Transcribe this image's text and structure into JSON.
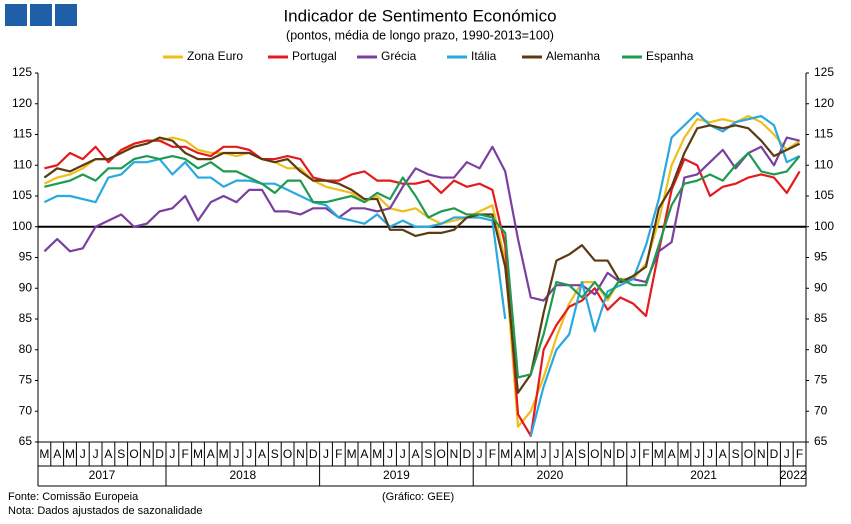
{
  "chart_data": {
    "type": "line",
    "title": "Indicador de Sentimento Económico",
    "subtitle": "(pontos, média de longo prazo, 1990-2013=100)",
    "source": "Fonte: Comissão Europeia",
    "note": "Nota: Dados ajustados de sazonalidade",
    "credit": "(Gráfico: GEE)",
    "categories": [
      "M",
      "A",
      "M",
      "J",
      "J",
      "A",
      "S",
      "O",
      "N",
      "D",
      "J",
      "F",
      "M",
      "A",
      "M",
      "J",
      "J",
      "A",
      "S",
      "O",
      "N",
      "D",
      "J",
      "F",
      "M",
      "A",
      "M",
      "J",
      "J",
      "A",
      "S",
      "O",
      "N",
      "D",
      "J",
      "F",
      "M",
      "A",
      "M",
      "J",
      "J",
      "A",
      "S",
      "O",
      "N",
      "D",
      "J",
      "F",
      "M",
      "A",
      "M",
      "J",
      "J",
      "A",
      "S",
      "O",
      "N",
      "D",
      "J",
      "F"
    ],
    "years": [
      "2017",
      "2018",
      "2019",
      "2020",
      "2021",
      "2022"
    ],
    "ylim": [
      65,
      125
    ],
    "yticks": [
      65,
      70,
      75,
      80,
      85,
      90,
      95,
      100,
      105,
      110,
      115,
      120,
      125
    ],
    "reference_line": 100,
    "series": [
      {
        "name": "Zona Euro",
        "color": "#f0be1a",
        "values": [
          107,
          108,
          108.5,
          109.5,
          111,
          111,
          112,
          113.5,
          114,
          114,
          114.5,
          114,
          112.5,
          112,
          112,
          111.5,
          112,
          111,
          110.5,
          109.5,
          109.5,
          107.5,
          106.5,
          106,
          105.5,
          104,
          105,
          103,
          102.5,
          103,
          101.5,
          100.5,
          101,
          101.5,
          102.5,
          103.5,
          94.5,
          67.5,
          70,
          75.5,
          82,
          87.5,
          91,
          91,
          88,
          91.5,
          91.5,
          94,
          101,
          110,
          114.5,
          117.5,
          117,
          117.5,
          117,
          118,
          117,
          115,
          112.5,
          114
        ]
      },
      {
        "name": "Portugal",
        "color": "#e41a1c",
        "values": [
          109.5,
          110,
          112,
          111,
          113,
          110.5,
          112.5,
          113.5,
          114,
          114,
          113,
          113,
          112,
          111.5,
          113,
          113,
          112.5,
          111,
          111,
          111.5,
          111,
          108,
          107.5,
          107.5,
          108.5,
          109,
          107.5,
          107.5,
          107,
          107,
          107.5,
          105.5,
          107.5,
          106.5,
          107,
          106,
          97,
          69.5,
          66,
          80,
          84,
          87,
          88,
          90,
          86.5,
          88.5,
          87.5,
          85.5,
          96,
          106,
          111,
          110,
          105,
          106.5,
          107,
          108,
          108.5,
          108,
          105.5,
          109
        ]
      },
      {
        "name": "Grécia",
        "color": "#7b3fa0",
        "values": [
          96,
          98,
          96,
          96.5,
          100,
          101,
          102,
          100,
          100.5,
          102.5,
          103,
          105,
          101,
          104,
          105,
          104,
          106,
          106,
          102.5,
          102.5,
          102,
          103,
          103,
          101.5,
          103,
          103,
          102.5,
          103,
          106.5,
          109.5,
          108.5,
          108,
          108,
          110.5,
          109.5,
          113,
          109,
          98,
          88.5,
          88,
          90.5,
          90.5,
          90.5,
          89,
          92.5,
          91,
          91.5,
          91,
          96,
          97.5,
          108,
          108.5,
          110.5,
          112.5,
          109.5,
          112,
          113,
          110,
          114.5,
          114
        ]
      },
      {
        "name": "Itália",
        "color": "#29a9e0",
        "values": [
          104,
          105,
          105,
          104.5,
          104,
          108,
          108.5,
          110.5,
          110.5,
          111,
          108.5,
          110.5,
          108,
          108,
          106.5,
          107.5,
          107.5,
          107,
          107,
          106,
          105,
          104,
          103.5,
          101.5,
          101,
          100.5,
          102,
          100,
          101,
          100,
          100,
          100.5,
          101.5,
          101.5,
          101.5,
          101,
          85,
          null,
          66,
          74,
          80,
          82.5,
          91,
          83,
          89.5,
          90.5,
          91.5,
          97,
          104.5,
          114.5,
          116.5,
          118.5,
          116.5,
          115.5,
          117,
          117.5,
          118,
          116.5,
          110.5,
          111.5
        ]
      },
      {
        "name": "Alemanha",
        "color": "#5c3a12",
        "values": [
          108,
          109.5,
          109,
          110,
          111,
          111,
          112,
          113,
          113.5,
          114.5,
          114,
          112,
          111,
          111,
          112,
          112,
          112,
          111,
          110.5,
          111,
          109,
          107.5,
          107.5,
          107,
          106,
          104.5,
          104.5,
          99.5,
          99.5,
          98.5,
          99,
          99,
          99.5,
          101.5,
          102,
          102,
          93.5,
          73,
          76,
          86,
          94.5,
          95.5,
          97,
          94.5,
          94.5,
          91,
          92,
          93.5,
          103,
          106.5,
          112,
          116,
          116.5,
          116,
          116.5,
          116,
          114,
          111.5,
          112.5,
          113.5
        ]
      },
      {
        "name": "Espanha",
        "color": "#1e9b50",
        "values": [
          106.5,
          107,
          107.5,
          108.5,
          107.5,
          109.5,
          109.5,
          111,
          111.5,
          111,
          111.5,
          111,
          109.5,
          110.5,
          109,
          109,
          108,
          107,
          105.5,
          107.5,
          107.5,
          104,
          104,
          104.5,
          105,
          104,
          105.5,
          104.5,
          108,
          105,
          101.5,
          102.5,
          103,
          102,
          102,
          101.5,
          99,
          75.5,
          76,
          82.5,
          91,
          90.5,
          88.5,
          91,
          88.5,
          91.5,
          90.5,
          90.5,
          97,
          103.5,
          107,
          107.5,
          108.5,
          107.5,
          110,
          112,
          109,
          108.5,
          109,
          111.5
        ]
      }
    ]
  }
}
